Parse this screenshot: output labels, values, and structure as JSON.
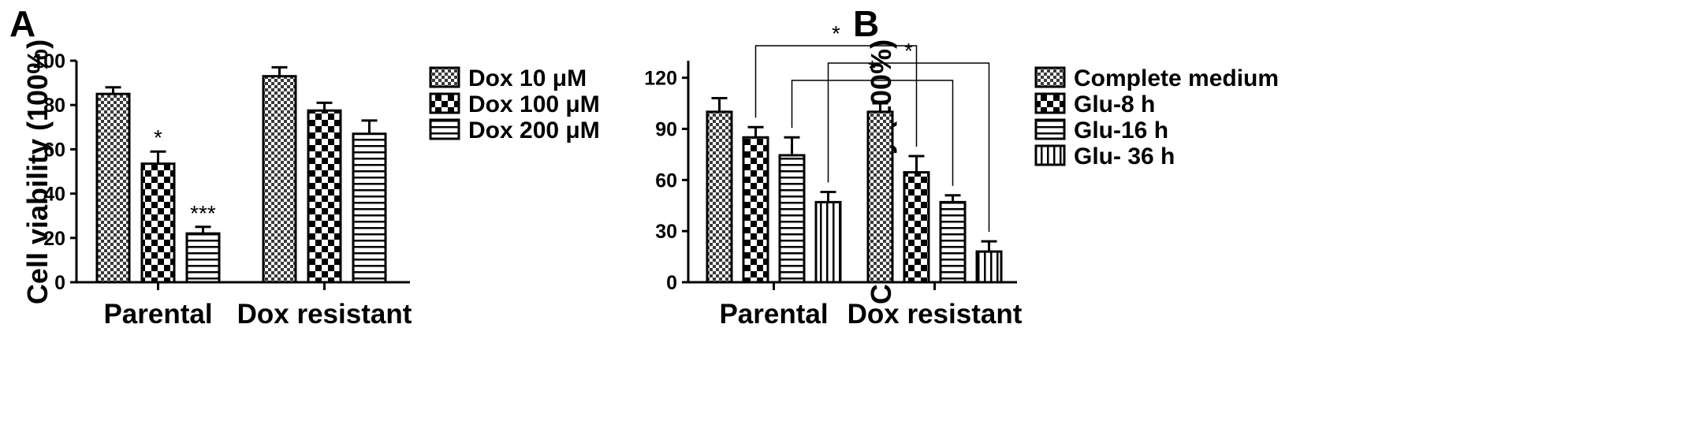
{
  "figure": {
    "panel_a_letter": "A",
    "panel_b_letter": "B"
  },
  "chart_data": [
    {
      "panel": "A",
      "type": "bar",
      "title": "",
      "xlabel": "",
      "ylabel": "Cell viability (100%)",
      "ylim": [
        0,
        100
      ],
      "yticks": [
        "0",
        "20",
        "40",
        "60",
        "80",
        "100"
      ],
      "yticks_values": [
        0,
        20,
        40,
        60,
        80,
        100
      ],
      "categories": [
        "Parental",
        "Dox resistant"
      ],
      "legend_position": "right",
      "grid": false,
      "series": [
        {
          "name": "Dox 10 μM",
          "pattern": "fine-checker",
          "values": [
            85,
            93
          ],
          "errors": [
            3,
            4
          ]
        },
        {
          "name": "Dox 100 μM",
          "pattern": "checker",
          "values": [
            53.5,
            77.5
          ],
          "errors": [
            5.5,
            3.5
          ]
        },
        {
          "name": "Dox 200 μM",
          "pattern": "horizontal-lines",
          "values": [
            22,
            67
          ],
          "errors": [
            3,
            6
          ]
        }
      ],
      "annotations": [
        {
          "text": "*",
          "category": "Parental",
          "series": "Dox 100 μM"
        },
        {
          "text": "***",
          "category": "Parental",
          "series": "Dox 200 μM"
        }
      ]
    },
    {
      "panel": "B",
      "type": "bar",
      "title": "",
      "xlabel": "",
      "ylabel": "Cell viability (100%)",
      "ylim": [
        0,
        130
      ],
      "yticks": [
        "0",
        "30",
        "60",
        "90",
        "120"
      ],
      "yticks_values": [
        0,
        30,
        60,
        90,
        120
      ],
      "categories": [
        "Parental",
        "Dox resistant"
      ],
      "legend_position": "right",
      "grid": false,
      "series": [
        {
          "name": "Complete medium",
          "pattern": "fine-checker",
          "values": [
            100,
            100
          ],
          "errors": [
            8,
            5
          ]
        },
        {
          "name": "Glu-8 h",
          "pattern": "checker",
          "values": [
            85,
            64.5
          ],
          "errors": [
            6,
            9.5
          ]
        },
        {
          "name": "Glu-16 h",
          "pattern": "horizontal-lines",
          "values": [
            74.5,
            47
          ],
          "errors": [
            10.5,
            4
          ]
        },
        {
          "name": "Glu- 36 h",
          "pattern": "vertical-lines",
          "values": [
            47,
            18
          ],
          "errors": [
            6,
            6
          ]
        }
      ],
      "comparisons": [
        {
          "text": "*",
          "from": {
            "category": "Parental",
            "series": "Glu-8 h"
          },
          "to": {
            "category": "Dox resistant",
            "series": "Glu-8 h"
          },
          "level": 3
        },
        {
          "text": "*",
          "from": {
            "category": "Parental",
            "series": "Glu- 36 h"
          },
          "to": {
            "category": "Dox resistant",
            "series": "Glu- 36 h"
          },
          "level": 2
        },
        {
          "text": "*",
          "from": {
            "category": "Parental",
            "series": "Glu-16 h"
          },
          "to": {
            "category": "Dox resistant",
            "series": "Glu-16 h"
          },
          "level": 1
        }
      ]
    }
  ]
}
